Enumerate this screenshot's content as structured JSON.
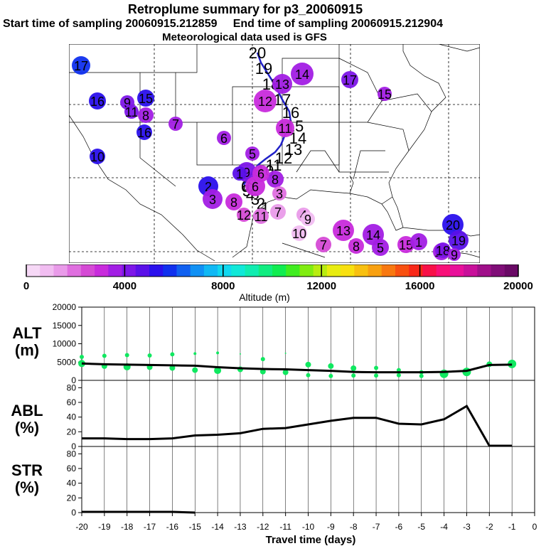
{
  "title": {
    "line1": "Retroplume summary for p3_20060915",
    "line2_start": "Start time of sampling 20060915.212859",
    "line2_end": "End time of sampling 20060915.212904",
    "line3": "Meteorological data used is GFS"
  },
  "colorbar": {
    "label": "Altitude (m)",
    "ticks": [
      "0",
      "4000",
      "8000",
      "12000",
      "16000",
      "20000"
    ],
    "colors": [
      "#f6d8f6",
      "#f1bdf1",
      "#e99be9",
      "#df6fdf",
      "#d54ad5",
      "#c82bdc",
      "#a21ee4",
      "#7d16e8",
      "#5a10e8",
      "#2a10ec",
      "#1030ee",
      "#1060f0",
      "#1090f4",
      "#10b8f4",
      "#10d8f0",
      "#10e8d8",
      "#10ecb0",
      "#10ec80",
      "#10ec50",
      "#40ec20",
      "#80ec10",
      "#b8ec10",
      "#e8ec10",
      "#f8e010",
      "#f8c010",
      "#f8a010",
      "#f87810",
      "#f85010",
      "#f82818",
      "#f81048",
      "#f81078",
      "#e8109a",
      "#c8109a",
      "#a0108a",
      "#800e78",
      "#6a0a66"
    ]
  },
  "map": {
    "track_labels": [
      "20",
      "19",
      "18",
      "17",
      "16",
      "15",
      "14",
      "13",
      "12",
      "11",
      "10",
      "9",
      "8",
      "7",
      "6",
      "5",
      "4",
      "3",
      "2",
      "1"
    ],
    "track_color": "#2020c8",
    "markers": [
      {
        "label": "17",
        "color": "#1030ee"
      },
      {
        "label": "16",
        "color": "#2a10ec"
      },
      {
        "label": "9",
        "color": "#7d16e8"
      },
      {
        "label": "15",
        "color": "#2a10ec"
      },
      {
        "label": "11",
        "color": "#7d16e8"
      },
      {
        "label": "8",
        "color": "#a21ee4"
      },
      {
        "label": "7",
        "color": "#a21ee4"
      },
      {
        "label": "16",
        "color": "#2a10ec"
      },
      {
        "label": "6",
        "color": "#a21ee4"
      },
      {
        "label": "10",
        "color": "#2a10ec"
      },
      {
        "label": "14",
        "color": "#a21ee4"
      },
      {
        "label": "12",
        "color": "#c82bdc"
      },
      {
        "label": "13",
        "color": "#a21ee4"
      },
      {
        "label": "17",
        "color": "#7d16e8"
      },
      {
        "label": "15",
        "color": "#a21ee4"
      },
      {
        "label": "11",
        "color": "#c82bdc"
      },
      {
        "label": "5",
        "color": "#a21ee4"
      },
      {
        "label": "9",
        "color": "#7d16e8"
      },
      {
        "label": "8",
        "color": "#a21ee4"
      },
      {
        "label": "6",
        "color": "#c82bdc"
      },
      {
        "label": "2",
        "color": "#2a10ec"
      },
      {
        "label": "3",
        "color": "#a21ee4"
      },
      {
        "label": "8",
        "color": "#c82bdc"
      },
      {
        "label": "12",
        "color": "#d54ad5"
      },
      {
        "label": "11",
        "color": "#df6fdf"
      },
      {
        "label": "7",
        "color": "#e99be9"
      },
      {
        "label": "4",
        "color": "#e99be9"
      },
      {
        "label": "1",
        "color": "#5a10e8"
      },
      {
        "label": "6",
        "color": "#c82bdc"
      },
      {
        "label": "3",
        "color": "#df6fdf"
      },
      {
        "label": "9",
        "color": "#f1bdf1"
      },
      {
        "label": "10",
        "color": "#f1bdf1"
      },
      {
        "label": "13",
        "color": "#c82bdc"
      },
      {
        "label": "7",
        "color": "#d54ad5"
      },
      {
        "label": "8",
        "color": "#c82bdc"
      },
      {
        "label": "14",
        "color": "#a21ee4"
      },
      {
        "label": "5",
        "color": "#a21ee4"
      },
      {
        "label": "15",
        "color": "#c82bdc"
      },
      {
        "label": "1",
        "color": "#a21ee4"
      },
      {
        "label": "16",
        "color": "#a21ee4"
      },
      {
        "label": "20",
        "color": "#2a10ec"
      },
      {
        "label": "19",
        "color": "#5a10e8"
      },
      {
        "label": "18",
        "color": "#7d16e8"
      },
      {
        "label": "9",
        "color": "#a21ee4"
      }
    ]
  },
  "chart_data": [
    {
      "type": "line",
      "panel": "ALT",
      "ylabel": "ALT (m)",
      "ylim": [
        0,
        20000
      ],
      "yticks": [
        0,
        5000,
        10000,
        15000,
        20000
      ],
      "x": [
        -20,
        -19,
        -18,
        -17,
        -16,
        -15,
        -14,
        -13,
        -12,
        -11,
        -10,
        -9,
        -8,
        -7,
        -6,
        -5,
        -4,
        -3,
        -2,
        -1
      ],
      "series": [
        {
          "name": "median altitude",
          "values": [
            4600,
            4400,
            4300,
            4200,
            4100,
            4000,
            3600,
            3300,
            3100,
            3000,
            2800,
            2600,
            2300,
            2200,
            2200,
            2200,
            2300,
            2600,
            4200,
            4300
          ]
        }
      ],
      "dots": [
        {
          "x": -20,
          "y": 4600,
          "r": 5
        },
        {
          "x": -20,
          "y": 6400,
          "r": 3
        },
        {
          "x": -19,
          "y": 3900,
          "r": 4
        },
        {
          "x": -19,
          "y": 6700,
          "r": 3
        },
        {
          "x": -18,
          "y": 3700,
          "r": 5
        },
        {
          "x": -18,
          "y": 6900,
          "r": 3
        },
        {
          "x": -17,
          "y": 3600,
          "r": 4
        },
        {
          "x": -17,
          "y": 6800,
          "r": 3
        },
        {
          "x": -16,
          "y": 3400,
          "r": 4
        },
        {
          "x": -16,
          "y": 7100,
          "r": 3
        },
        {
          "x": -15,
          "y": 2800,
          "r": 4
        },
        {
          "x": -15,
          "y": 7300,
          "r": 2
        },
        {
          "x": -14,
          "y": 2700,
          "r": 5
        },
        {
          "x": -14,
          "y": 7500,
          "r": 2
        },
        {
          "x": -13,
          "y": 3000,
          "r": 4
        },
        {
          "x": -13,
          "y": 7200,
          "r": 1
        },
        {
          "x": -12,
          "y": 2400,
          "r": 4
        },
        {
          "x": -12,
          "y": 5800,
          "r": 3
        },
        {
          "x": -11,
          "y": 2200,
          "r": 4
        },
        {
          "x": -11,
          "y": 7400,
          "r": 1
        },
        {
          "x": -10,
          "y": 4300,
          "r": 4
        },
        {
          "x": -10,
          "y": 1400,
          "r": 3
        },
        {
          "x": -9,
          "y": 3900,
          "r": 4
        },
        {
          "x": -9,
          "y": 1200,
          "r": 3
        },
        {
          "x": -8,
          "y": 3300,
          "r": 4
        },
        {
          "x": -8,
          "y": 1300,
          "r": 3
        },
        {
          "x": -7,
          "y": 3400,
          "r": 3
        },
        {
          "x": -7,
          "y": 1300,
          "r": 3
        },
        {
          "x": -6,
          "y": 2800,
          "r": 3
        },
        {
          "x": -6,
          "y": 1400,
          "r": 3
        },
        {
          "x": -5,
          "y": 2200,
          "r": 3
        },
        {
          "x": -5,
          "y": 1200,
          "r": 3
        },
        {
          "x": -4,
          "y": 1800,
          "r": 6
        },
        {
          "x": -3,
          "y": 2300,
          "r": 6
        },
        {
          "x": -2,
          "y": 4400,
          "r": 4
        },
        {
          "x": -1,
          "y": 4500,
          "r": 6
        }
      ],
      "dot_color": "#10e860"
    },
    {
      "type": "line",
      "panel": "ABL",
      "ylabel": "ABL (%)",
      "ylim": [
        0,
        90
      ],
      "yticks": [
        0,
        20,
        40,
        60,
        80
      ],
      "x": [
        -20,
        -19,
        -18,
        -17,
        -16,
        -15,
        -14,
        -13,
        -12,
        -11,
        -10,
        -9,
        -8,
        -7,
        -6,
        -5,
        -4,
        -3,
        -2,
        -1
      ],
      "series": [
        {
          "name": "ABL",
          "values": [
            11,
            11,
            10,
            10,
            11,
            15,
            16,
            18,
            24,
            25,
            30,
            35,
            39,
            39,
            31,
            30,
            37,
            55,
            1,
            1
          ]
        }
      ]
    },
    {
      "type": "line",
      "panel": "STR",
      "ylabel": "STR (%)",
      "ylim": [
        0,
        90
      ],
      "yticks": [
        0,
        20,
        40,
        60,
        80
      ],
      "x": [
        -20,
        -19,
        -18,
        -17,
        -16,
        -15
      ],
      "series": [
        {
          "name": "STR",
          "values": [
            1,
            1,
            1,
            1,
            1,
            0
          ]
        }
      ]
    }
  ],
  "xaxis": {
    "label": "Travel time (days)",
    "ticks": [
      "-20",
      "-19",
      "-18",
      "-17",
      "-16",
      "-15",
      "-14",
      "-13",
      "-12",
      "-11",
      "-10",
      "-9",
      "-8",
      "-7",
      "-6",
      "-5",
      "-4",
      "-3",
      "-2",
      "-1",
      "0"
    ]
  },
  "panel_labels": {
    "alt_line1": "ALT",
    "alt_line2": "(m)",
    "abl_line1": "ABL",
    "abl_line2": "(%)",
    "str_line1": "STR",
    "str_line2": "(%)"
  }
}
